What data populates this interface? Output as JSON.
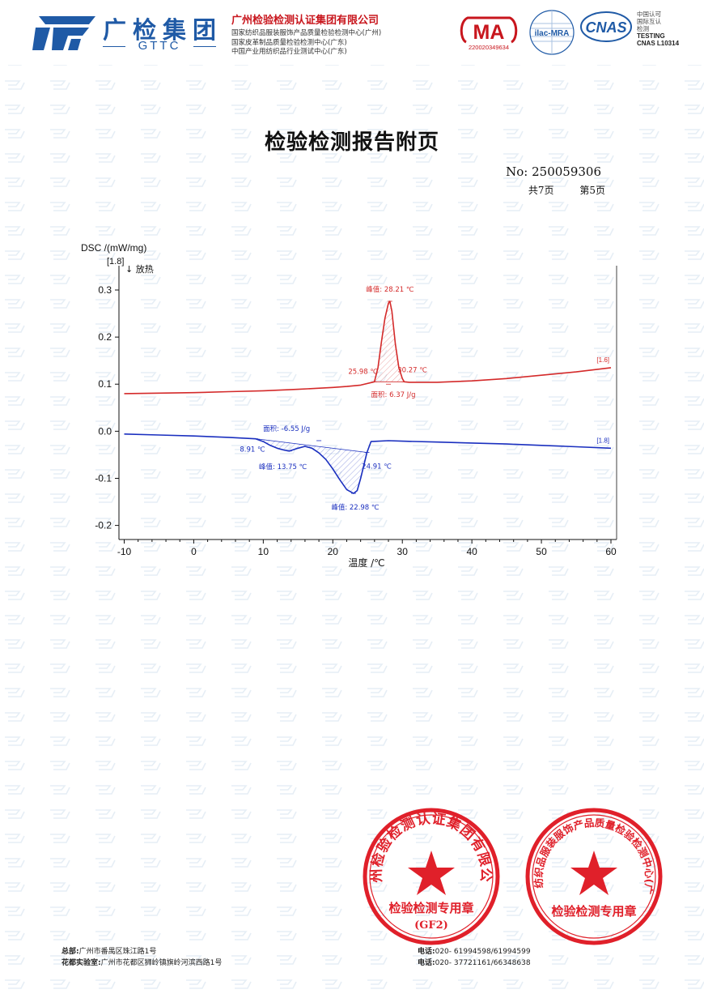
{
  "header": {
    "brand_name": "广检集团",
    "brand_abbr": "GTTC",
    "org_title": "广州检验检测认证集团有限公司",
    "org_lines": [
      "国家纺织品服装服饰产品质量检验检测中心(广州)",
      "国家皮革制品质量检验检测中心(广东)",
      "中国产业用纺织品行业测试中心(广东)"
    ],
    "ma_mark": "MA",
    "ma_number": "220020349634",
    "ilac_label": "ilac-MRA",
    "cnas_logo": "CNAS",
    "cnas_lines": [
      "中国认可",
      "国际互认",
      "检测"
    ],
    "cnas_testing": "TESTING",
    "cnas_number": "CNAS L10314",
    "brand_color": "#1f5aa6",
    "accent_color": "#c8161d"
  },
  "document": {
    "title": "检验检测报告附页",
    "report_no": "No: 250059306",
    "total_pages": "共7页",
    "current_page": "第5页"
  },
  "chart_data": {
    "type": "line",
    "ylabel": "DSC /(mW/mg)",
    "ylabel_marker": "[1.8]",
    "exo_note": "↓ 放热",
    "xlabel": "温度 /℃",
    "xlim": [
      -10,
      60
    ],
    "ylim": [
      -0.2,
      0.3
    ],
    "xticks": [
      "-10",
      "0",
      "10",
      "20",
      "30",
      "40",
      "50",
      "60"
    ],
    "yticks": [
      "0.3",
      "0.2",
      "0.1",
      "0.0",
      "-0.1",
      "-0.2"
    ],
    "grid": false,
    "series": [
      {
        "name": "[1.6]",
        "color": "#d42a2a",
        "x": [
          -10,
          -5,
          0,
          5,
          10,
          15,
          20,
          22,
          24,
          25.98,
          26.5,
          27.0,
          27.5,
          28.0,
          28.21,
          28.5,
          29.0,
          29.5,
          30.0,
          30.27,
          31,
          35,
          40,
          45,
          50,
          55,
          60
        ],
        "y": [
          0.08,
          0.081,
          0.082,
          0.084,
          0.086,
          0.089,
          0.093,
          0.095,
          0.098,
          0.105,
          0.135,
          0.19,
          0.24,
          0.272,
          0.276,
          0.255,
          0.185,
          0.135,
          0.112,
          0.105,
          0.104,
          0.104,
          0.107,
          0.112,
          0.119,
          0.126,
          0.135
        ]
      },
      {
        "name": "[1.8]",
        "color": "#1a2fbf",
        "x": [
          -10,
          -5,
          0,
          5,
          8.91,
          10,
          11,
          12,
          13,
          13.75,
          15,
          16,
          17,
          18,
          19,
          20,
          21,
          22,
          22.98,
          23.5,
          24,
          24.91,
          25.5,
          28,
          30,
          35,
          40,
          45,
          50,
          55,
          60
        ],
        "y": [
          -0.006,
          -0.008,
          -0.01,
          -0.013,
          -0.016,
          -0.022,
          -0.03,
          -0.036,
          -0.04,
          -0.042,
          -0.036,
          -0.032,
          -0.036,
          -0.046,
          -0.06,
          -0.08,
          -0.103,
          -0.124,
          -0.132,
          -0.126,
          -0.1,
          -0.045,
          -0.022,
          -0.02,
          -0.021,
          -0.023,
          -0.025,
          -0.027,
          -0.03,
          -0.033,
          -0.036
        ]
      }
    ],
    "annotations": [
      {
        "text": "峰值: 28.21 ℃",
        "x": 28.21,
        "y": 0.276,
        "color": "#d42a2a"
      },
      {
        "text": "25.98 ℃",
        "x": 25.98,
        "y": 0.105,
        "color": "#d42a2a"
      },
      {
        "text": "30.27 ℃",
        "x": 30.27,
        "y": 0.105,
        "color": "#d42a2a"
      },
      {
        "text": "面积: 6.37 J/g",
        "x": 28.0,
        "y": 0.1,
        "color": "#d42a2a"
      },
      {
        "text": "面积: -6.55 J/g",
        "x": 18.0,
        "y": -0.02,
        "color": "#1a2fbf"
      },
      {
        "text": "8.91 ℃",
        "x": 8.91,
        "y": -0.016,
        "color": "#1a2fbf"
      },
      {
        "text": "峰值: 13.75 ℃",
        "x": 13.75,
        "y": -0.042,
        "color": "#1a2fbf"
      },
      {
        "text": "24.91 ℃",
        "x": 24.91,
        "y": -0.045,
        "color": "#1a2fbf"
      },
      {
        "text": "峰值: 22.98 ℃",
        "x": 22.98,
        "y": -0.132,
        "color": "#1a2fbf"
      }
    ]
  },
  "seals": [
    {
      "org": "广州检验检测认证集团有限公司",
      "purpose": "检验检测专用章",
      "code": "(GF2)",
      "color": "#e0202a"
    },
    {
      "org": "国家纺织品服装服饰产品质量检验检测中心(广州)",
      "purpose": "检验检测专用章",
      "code": "",
      "color": "#e0202a"
    }
  ],
  "footer": {
    "hq_label": "总部:",
    "hq_address": "广州市番禺区珠江路1号",
    "lab_label": "花都实验室:",
    "lab_address": "广州市花都区狮岭镇旗岭河滨西路1号",
    "phone_label": "电话:",
    "hq_phone": "020- 61994598/61994599",
    "lab_phone": "020- 37721161/66348638"
  }
}
